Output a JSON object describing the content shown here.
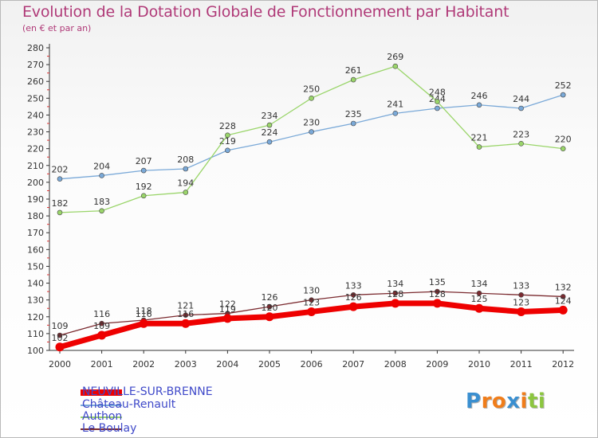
{
  "title": "Evolution de la Dotation Globale de Fonctionnement par Habitant",
  "subtitle": "(en € et par an)",
  "logo": {
    "text": "Proxiti",
    "letters": [
      "P",
      "r",
      "o",
      "x",
      "i",
      "t",
      "i"
    ],
    "colors": [
      "#3a8fd0",
      "#f07d1a",
      "#f07d1a",
      "#3a8fd0",
      "#f07d1a",
      "#8cc63f",
      "#8cc63f"
    ]
  },
  "chart_data": {
    "type": "line",
    "title": "Evolution de la Dotation Globale de Fonctionnement par Habitant",
    "subtitle": "(en € et par an)",
    "xlabel": "",
    "ylabel": "",
    "ylim": [
      100,
      280
    ],
    "y_ticks": [
      100,
      110,
      120,
      130,
      140,
      150,
      160,
      170,
      180,
      190,
      200,
      210,
      220,
      230,
      240,
      250,
      260,
      270,
      280
    ],
    "categories": [
      "2000",
      "2001",
      "2002",
      "2003",
      "2004",
      "2005",
      "2006",
      "2007",
      "2008",
      "2009",
      "2010",
      "2011",
      "2012"
    ],
    "grid": false,
    "legend_position": "bottom-left",
    "series": [
      {
        "name": "NEUVILLE-SUR-BRENNE",
        "color": "#ee0000",
        "values": [
          102,
          109,
          116,
          116,
          119,
          120,
          123,
          126,
          128,
          128,
          125,
          123,
          124
        ]
      },
      {
        "name": "Château-Renault",
        "color": "#7aa9d8",
        "values": [
          202,
          204,
          207,
          208,
          219,
          224,
          230,
          235,
          241,
          244,
          246,
          244,
          252
        ]
      },
      {
        "name": "Authon",
        "color": "#9ad56a",
        "values": [
          182,
          183,
          192,
          194,
          228,
          234,
          250,
          261,
          269,
          248,
          221,
          223,
          220
        ]
      },
      {
        "name": "Le Boulay",
        "color": "#7b2b30",
        "values": [
          109,
          116,
          118,
          121,
          122,
          126,
          130,
          133,
          134,
          135,
          134,
          133,
          132
        ]
      }
    ]
  }
}
